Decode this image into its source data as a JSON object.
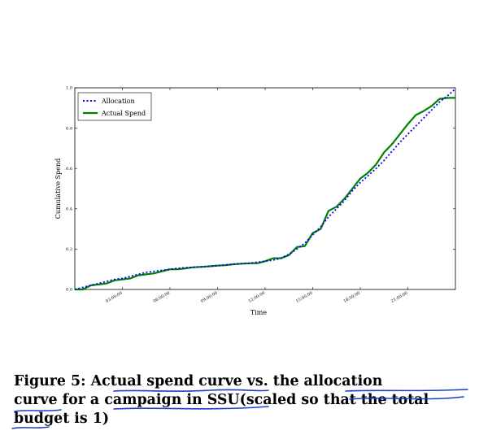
{
  "figure": {
    "caption_lines": [
      "Figure 5:  Actual spend curve vs.  the allocation",
      "curve for a campaign in SSU(scaled so that the total",
      "budget is 1)"
    ]
  },
  "chart_data": {
    "type": "line",
    "xlabel": "Time",
    "ylabel": "Cumulative Spend",
    "xlim": [
      0,
      24
    ],
    "ylim": [
      0,
      1.0
    ],
    "y_ticks": [
      0.0,
      0.2,
      0.4,
      0.6,
      0.8,
      1.0
    ],
    "y_tick_labels": [
      "0.0",
      "0.2",
      "0.4",
      "0.6",
      "0.8",
      "1.0"
    ],
    "x_ticks": [
      3,
      6,
      9,
      12,
      15,
      18,
      21
    ],
    "x_tick_labels": [
      "03:00:00",
      "06:00:00",
      "09:00:00",
      "12:00:00",
      "15:00:00",
      "18:00:00",
      "21:00:00"
    ],
    "legend_position": "top-left",
    "x": [
      0,
      0.5,
      1,
      1.5,
      2,
      2.5,
      3,
      3.5,
      4,
      4.5,
      5,
      5.5,
      6,
      6.5,
      7,
      7.5,
      8,
      8.5,
      9,
      9.5,
      10,
      10.5,
      11,
      11.5,
      12,
      12.5,
      13,
      13.5,
      14,
      14.5,
      15,
      15.5,
      16,
      16.5,
      17,
      17.5,
      18,
      18.5,
      19,
      19.5,
      20,
      20.5,
      21,
      21.5,
      22,
      22.5,
      23,
      23.5,
      24
    ],
    "series": [
      {
        "name": "Allocation",
        "color": "#0000ff",
        "style": "dotted",
        "values": [
          0.0,
          0.01,
          0.02,
          0.03,
          0.04,
          0.05,
          0.055,
          0.065,
          0.075,
          0.085,
          0.09,
          0.095,
          0.1,
          0.105,
          0.108,
          0.11,
          0.112,
          0.115,
          0.118,
          0.122,
          0.125,
          0.128,
          0.13,
          0.135,
          0.14,
          0.145,
          0.155,
          0.175,
          0.2,
          0.23,
          0.27,
          0.31,
          0.36,
          0.4,
          0.44,
          0.49,
          0.53,
          0.565,
          0.6,
          0.64,
          0.685,
          0.73,
          0.77,
          0.81,
          0.85,
          0.89,
          0.93,
          0.96,
          0.995
        ]
      },
      {
        "name": "Actual Spend",
        "color": "#008000",
        "style": "solid",
        "values": [
          0.0,
          0.0,
          0.02,
          0.025,
          0.03,
          0.045,
          0.05,
          0.055,
          0.07,
          0.075,
          0.08,
          0.09,
          0.1,
          0.1,
          0.105,
          0.11,
          0.112,
          0.115,
          0.118,
          0.12,
          0.125,
          0.128,
          0.13,
          0.13,
          0.14,
          0.155,
          0.155,
          0.17,
          0.21,
          0.215,
          0.28,
          0.3,
          0.39,
          0.41,
          0.45,
          0.5,
          0.55,
          0.58,
          0.62,
          0.68,
          0.72,
          0.77,
          0.82,
          0.865,
          0.885,
          0.91,
          0.945,
          0.95,
          0.95
        ]
      }
    ]
  },
  "ink": {
    "color": "#1a3cc8"
  }
}
